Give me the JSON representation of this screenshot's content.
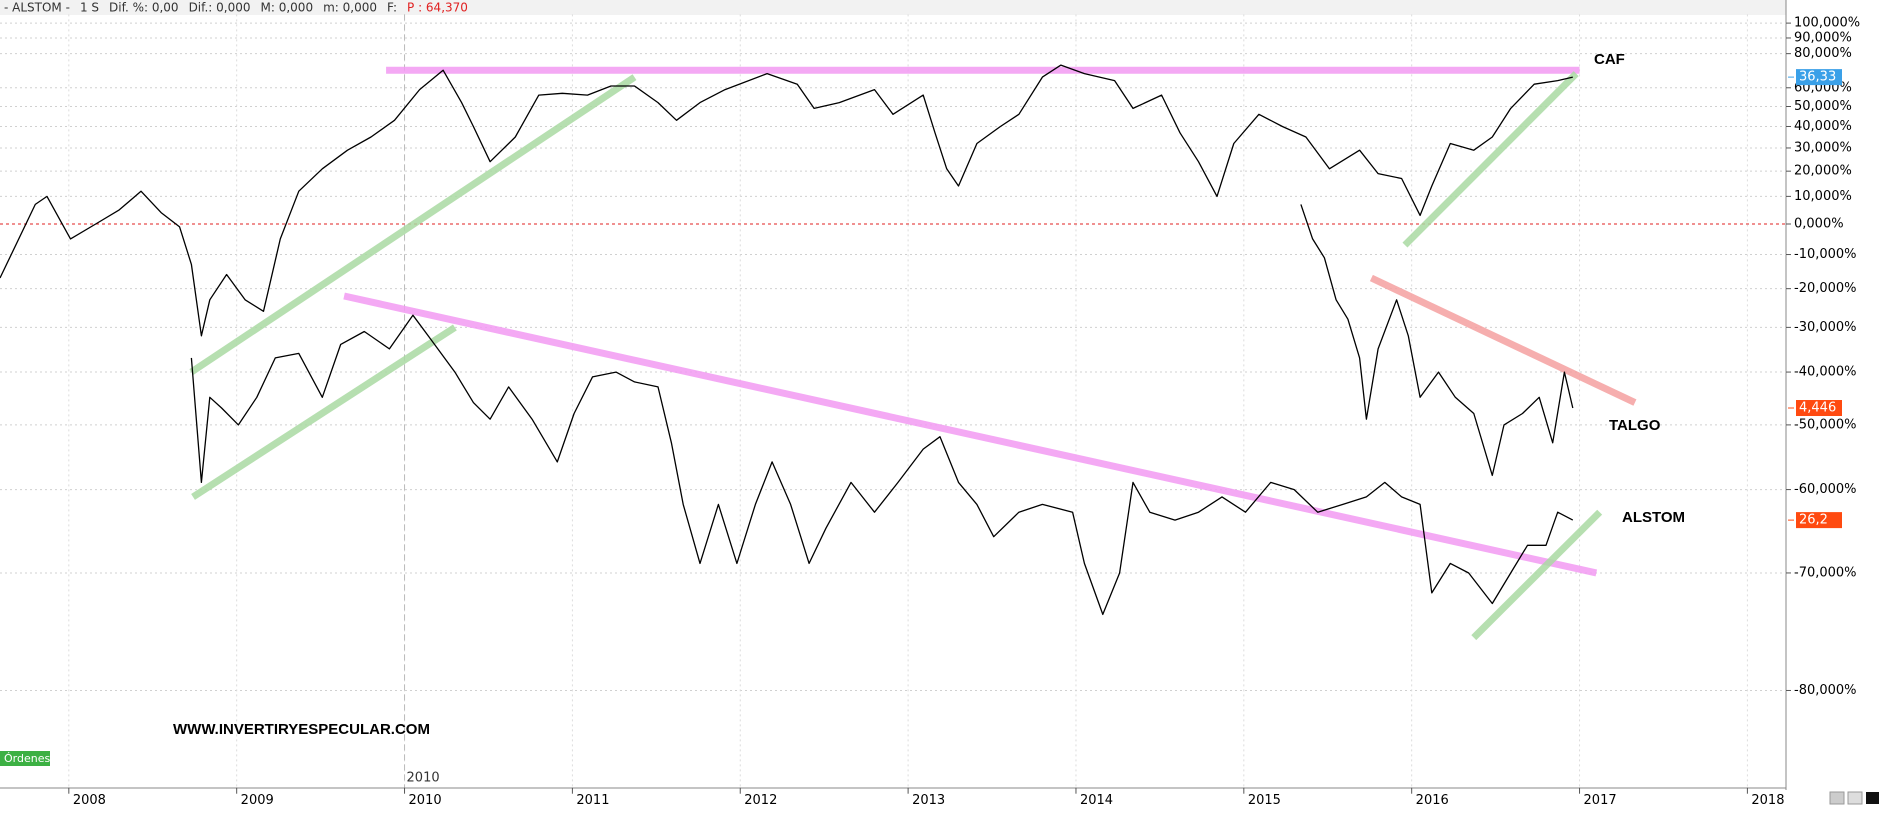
{
  "chart_data": {
    "type": "line",
    "header": [
      "- ALSTOM -",
      "1 S",
      "Dif. %: 0,00",
      "Dif.: 0,000",
      "M: 0,000",
      "m: 0,000",
      "F:"
    ],
    "header_highlight": "P : 64,370",
    "yscale": "log",
    "xlim": [
      2007.59,
      2018.23
    ],
    "ylim": [
      -85.7,
      106.1
    ],
    "xticks": [
      2008,
      2009,
      2010,
      2011,
      2012,
      2013,
      2014,
      2015,
      2016,
      2017,
      2018
    ],
    "yticks": [
      {
        "value": 100,
        "label": "100,000%"
      },
      {
        "value": 90,
        "label": "90,000%"
      },
      {
        "value": 80,
        "label": "80,000%"
      },
      {
        "value": 60,
        "label": "60,000%"
      },
      {
        "value": 50,
        "label": "50,000%"
      },
      {
        "value": 40,
        "label": "40,000%"
      },
      {
        "value": 30,
        "label": "30,000%"
      },
      {
        "value": 20,
        "label": "20,000%"
      },
      {
        "value": 10,
        "label": "10,000%"
      },
      {
        "value": 0,
        "label": "0,000%"
      },
      {
        "value": -10,
        "label": "-10,000%"
      },
      {
        "value": -20,
        "label": "-20,000%"
      },
      {
        "value": -30,
        "label": "-30,000%"
      },
      {
        "value": -40,
        "label": "-40,000%"
      },
      {
        "value": -50,
        "label": "-50,000%"
      },
      {
        "value": -60,
        "label": "-60,000%"
      },
      {
        "value": -70,
        "label": "-70,000%"
      },
      {
        "value": -80,
        "label": "-80,000%"
      }
    ],
    "grid": true,
    "zero_line_color": "#e02020",
    "cursor": {
      "value": 2010,
      "label": "2010"
    },
    "watermark": "WWW.INVERTIRYESPECULAR.COM",
    "orders_button": "Órdenes",
    "series": [
      {
        "name": "CAF",
        "color": "#000000",
        "tag_label": "36,33",
        "tag_color": "#3aa0e8",
        "x": [
          2007.59,
          2007.8,
          2007.87,
          2008.01,
          2008.16,
          2008.3,
          2008.43,
          2008.55,
          2008.66,
          2008.73,
          2008.79,
          2008.84,
          2008.94,
          2009.05,
          2009.16,
          2009.26,
          2009.37,
          2009.51,
          2009.66,
          2009.8,
          2009.94,
          2010.09,
          2010.23,
          2010.34,
          2010.41,
          2010.51,
          2010.66,
          2010.8,
          2010.94,
          2011.09,
          2011.23,
          2011.37,
          2011.51,
          2011.62,
          2011.76,
          2011.91,
          2012.16,
          2012.34,
          2012.44,
          2012.59,
          2012.8,
          2012.91,
          2013.09,
          2013.16,
          2013.23,
          2013.3,
          2013.41,
          2013.55,
          2013.66,
          2013.8,
          2013.91,
          2014.05,
          2014.23,
          2014.34,
          2014.51,
          2014.62,
          2014.73,
          2014.84,
          2014.94,
          2015.09,
          2015.23,
          2015.37,
          2015.51,
          2015.69,
          2015.8,
          2015.94,
          2016.05,
          2016.12,
          2016.23,
          2016.37,
          2016.48,
          2016.59,
          2016.73,
          2016.87,
          2016.96
        ],
        "values": [
          -17,
          7,
          10,
          -5,
          0,
          5,
          12,
          4,
          -1,
          -13,
          -32,
          -23,
          -16,
          -23,
          -26,
          -5,
          12,
          21,
          29,
          35,
          43,
          59,
          70,
          52,
          40,
          24,
          35,
          56,
          57,
          56,
          61,
          61,
          52,
          43,
          52,
          59,
          68,
          62,
          49,
          52,
          59,
          46,
          56,
          37,
          21,
          14,
          32,
          40,
          46,
          66,
          73,
          68,
          64,
          49,
          56,
          37,
          24,
          10,
          32,
          46,
          40,
          35,
          21,
          29,
          19,
          17,
          3,
          14,
          32,
          29,
          35,
          49,
          62,
          64,
          66
        ]
      },
      {
        "name": "TALGO",
        "color": "#000000",
        "tag_label": "4,446",
        "tag_color": "#ff4a10",
        "x": [
          2015.34,
          2015.41,
          2015.48,
          2015.55,
          2015.62,
          2015.69,
          2015.73,
          2015.8,
          2015.91,
          2015.98,
          2016.05,
          2016.16,
          2016.26,
          2016.37,
          2016.48,
          2016.55,
          2016.66,
          2016.76,
          2016.84,
          2016.91,
          2016.96
        ],
        "values": [
          7,
          -5,
          -11,
          -23,
          -28,
          -37,
          -49,
          -35,
          -23,
          -32,
          -45,
          -40,
          -45,
          -48,
          -58,
          -50,
          -48,
          -45,
          -53,
          -40,
          -47
        ]
      },
      {
        "name": "ALSTOM",
        "color": "#000000",
        "tag_label": "26,2",
        "tag_color": "#ff4a10",
        "x": [
          2008.73,
          2008.79,
          2008.84,
          2008.91,
          2009.01,
          2009.12,
          2009.23,
          2009.37,
          2009.51,
          2009.62,
          2009.76,
          2009.91,
          2010.05,
          2010.16,
          2010.3,
          2010.41,
          2010.51,
          2010.62,
          2010.76,
          2010.91,
          2011.01,
          2011.12,
          2011.26,
          2011.37,
          2011.51,
          2011.59,
          2011.66,
          2011.76,
          2011.87,
          2011.98,
          2012.09,
          2012.19,
          2012.3,
          2012.41,
          2012.51,
          2012.66,
          2012.8,
          2012.94,
          2013.09,
          2013.19,
          2013.3,
          2013.41,
          2013.51,
          2013.66,
          2013.8,
          2013.98,
          2014.05,
          2014.16,
          2014.26,
          2014.34,
          2014.44,
          2014.59,
          2014.73,
          2014.87,
          2015.01,
          2015.16,
          2015.3,
          2015.44,
          2015.59,
          2015.73,
          2015.84,
          2015.94,
          2016.05,
          2016.12,
          2016.23,
          2016.34,
          2016.48,
          2016.59,
          2016.69,
          2016.8,
          2016.87,
          2016.96
        ],
        "values": [
          -37,
          -59,
          -45,
          -47,
          -50,
          -45,
          -37,
          -36,
          -45,
          -34,
          -31,
          -35,
          -27,
          -33,
          -40,
          -46,
          -49,
          -43,
          -49,
          -56,
          -48,
          -41,
          -40,
          -42,
          -43,
          -53,
          -62,
          -69,
          -62,
          -69,
          -62,
          -56,
          -62,
          -69,
          -65,
          -59,
          -63,
          -59,
          -54,
          -52,
          -59,
          -62,
          -66,
          -63,
          -62,
          -63,
          -69,
          -74,
          -70,
          -59,
          -63,
          -64,
          -63,
          -61,
          -63,
          -59,
          -60,
          -63,
          -62,
          -61,
          -59,
          -61,
          -62,
          -72,
          -69,
          -70,
          -73,
          -70,
          -67,
          -67,
          -63,
          -64
        ]
      }
    ],
    "trendlines": [
      {
        "color": "#f29af2",
        "x": [
          2009.89,
          2017.0
        ],
        "y": [
          70,
          70
        ]
      },
      {
        "color": "#a9d9a2",
        "x": [
          2008.73,
          2011.37
        ],
        "y": [
          -40,
          66
        ]
      },
      {
        "color": "#a9d9a2",
        "x": [
          2015.96,
          2016.98
        ],
        "y": [
          -7,
          68
        ]
      },
      {
        "color": "#f29af2",
        "x": [
          2009.64,
          2017.1
        ],
        "y": [
          -22,
          -70
        ]
      },
      {
        "color": "#a9d9a2",
        "x": [
          2008.74,
          2010.3
        ],
        "y": [
          -61,
          -30
        ]
      },
      {
        "color": "#a9d9a2",
        "x": [
          2016.37,
          2017.12
        ],
        "y": [
          -76,
          -63
        ]
      },
      {
        "color": "#f4a0a0",
        "x": [
          2015.76,
          2017.33
        ],
        "y": [
          -17,
          -46
        ]
      }
    ]
  }
}
